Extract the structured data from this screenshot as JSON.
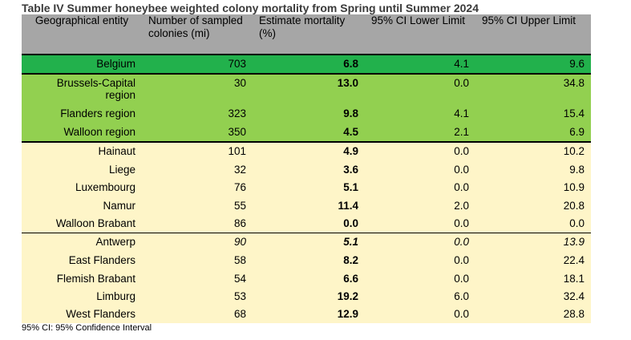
{
  "title": "Table IV Summer honeybee weighted colony mortality from Spring until Summer 2024",
  "headers": [
    "Geographical entity",
    "Number of sampled colonies (mi)",
    "Estimate mortality (%)",
    "95% CI Lower Limit",
    "95% CI Upper Limit"
  ],
  "country": [
    {
      "entity": "Belgium",
      "n": "703",
      "est": "6.8",
      "lower": "4.1",
      "upper": "9.6"
    }
  ],
  "regions": [
    {
      "entity": "Brussels-Capital region",
      "n": "30",
      "est": "13.0",
      "lower": "0.0",
      "upper": "34.8"
    },
    {
      "entity": "Flanders region",
      "n": "323",
      "est": "9.8",
      "lower": "4.1",
      "upper": "15.4"
    },
    {
      "entity": "Walloon region",
      "n": "350",
      "est": "4.5",
      "lower": "2.1",
      "upper": "6.9"
    }
  ],
  "walloon_provinces": [
    {
      "entity": "Hainaut",
      "n": "101",
      "est": "4.9",
      "lower": "0.0",
      "upper": "10.2"
    },
    {
      "entity": "Liege",
      "n": "32",
      "est": "3.6",
      "lower": "0.0",
      "upper": "9.8"
    },
    {
      "entity": "Luxembourg",
      "n": "76",
      "est": "5.1",
      "lower": "0.0",
      "upper": "10.9"
    },
    {
      "entity": "Namur",
      "n": "55",
      "est": "11.4",
      "lower": "2.0",
      "upper": "20.8"
    },
    {
      "entity": "Walloon Brabant",
      "n": "86",
      "est": "0.0",
      "lower": "0.0",
      "upper": "0.0"
    }
  ],
  "flemish_provinces": [
    {
      "entity": "Antwerp",
      "n": "90",
      "est": "5.1",
      "lower": "0.0",
      "upper": "13.9"
    },
    {
      "entity": "East Flanders",
      "n": "58",
      "est": "8.2",
      "lower": "0.0",
      "upper": "22.4"
    },
    {
      "entity": "Flemish Brabant",
      "n": "54",
      "est": "6.6",
      "lower": "0.0",
      "upper": "18.1"
    },
    {
      "entity": "Limburg",
      "n": "53",
      "est": "19.2",
      "lower": "6.0",
      "upper": "32.4"
    },
    {
      "entity": "West Flanders",
      "n": "68",
      "est": "12.9",
      "lower": "0.0",
      "upper": "28.8"
    }
  ],
  "footnote": "95% CI: 95% Confidence Interval",
  "colors": {
    "header": "#a6a6a6",
    "country": "#22b14c",
    "region": "#92d050",
    "province": "#fef5c8"
  }
}
